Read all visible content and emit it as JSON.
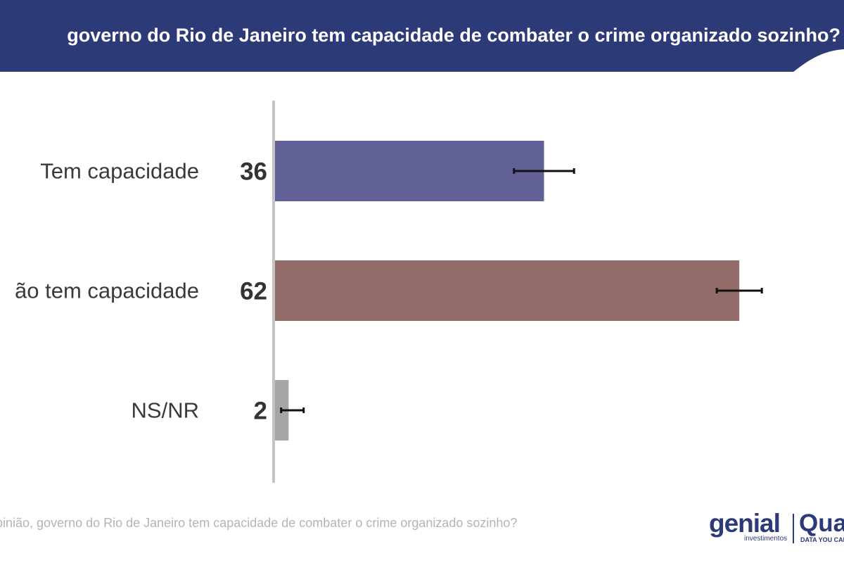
{
  "header": {
    "title": "governo do Rio de Janeiro tem capacidade de combater o crime organizado sozinho?",
    "background_color": "#2d3a78"
  },
  "chart_data": {
    "type": "bar",
    "orientation": "horizontal",
    "categories": [
      "Tem capacidade",
      "ão tem capacidade",
      "NS/NR"
    ],
    "values": [
      36,
      62,
      2
    ],
    "value_labels": [
      "36",
      "62",
      "2"
    ],
    "error_bars": [
      [
        32,
        40
      ],
      [
        59,
        65
      ],
      [
        1,
        4
      ]
    ],
    "colors": [
      "#626197",
      "#946c69",
      "#a6a6a6"
    ],
    "xlim": [
      0,
      75
    ],
    "grid": false,
    "legend": "none"
  },
  "footer": {
    "question": "pinião, governo do Rio de Janeiro tem capacidade de combater o crime organizado sozinho?"
  },
  "logos": {
    "genial_word": "genial",
    "genial_sub": "investimentos",
    "quaest_word": "Quaest",
    "quaest_tagline": "DATA YOU CAN TRUST"
  }
}
